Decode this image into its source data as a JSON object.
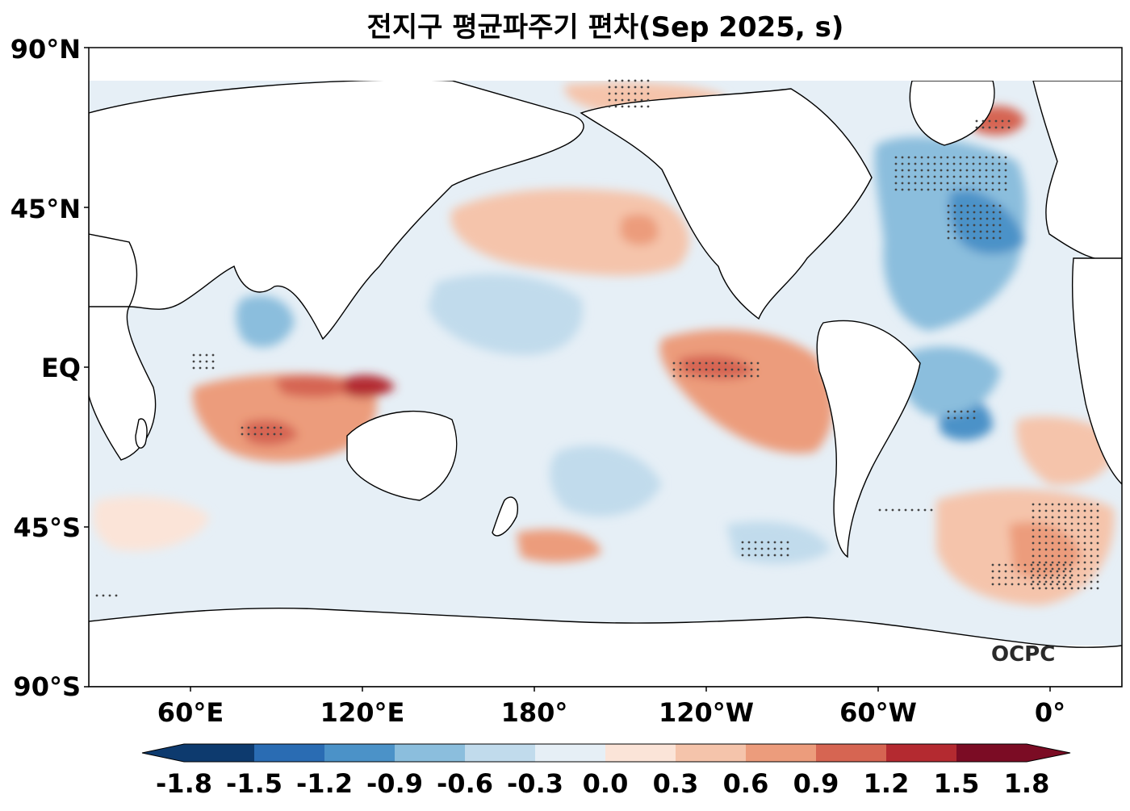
{
  "title": "전지구 평균파주기 편차(Sep 2025, s)",
  "y_ticks": [
    "90°N",
    "45°N",
    "EQ",
    "45°S",
    "90°S"
  ],
  "x_ticks": [
    "60°E",
    "120°E",
    "180°",
    "120°W",
    "60°W",
    "0°"
  ],
  "colorbar": {
    "ticks": [
      "-1.8",
      "-1.5",
      "-1.2",
      "-0.9",
      "-0.6",
      "-0.3",
      "0.0",
      "0.3",
      "0.6",
      "0.9",
      "1.2",
      "1.5",
      "1.8"
    ],
    "colors": [
      "#0d3a6e",
      "#2a6cb3",
      "#4b92c8",
      "#8bbedd",
      "#c1dbec",
      "#e6eff6",
      "#fbe4d8",
      "#f5c4ab",
      "#ec9c7c",
      "#d66552",
      "#b42a30",
      "#7b0c24"
    ]
  },
  "logo_text": "OCPC",
  "colors": {
    "land": "#ffffff",
    "coast": "#000000",
    "stipple": "#444444"
  }
}
